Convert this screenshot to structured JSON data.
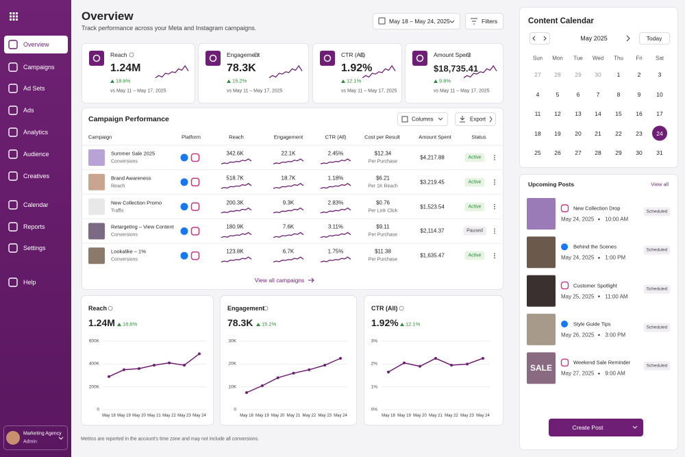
{
  "sidebar": {
    "nav": [
      "Overview",
      "Campaigns",
      "Ad Sets",
      "Ads",
      "Analytics",
      "Audience",
      "Creatives",
      "Calendar",
      "Reports",
      "Settings",
      "Help"
    ],
    "active": 0,
    "profile": {
      "name": "Marketing Agency",
      "role": "Admin"
    }
  },
  "header": {
    "title": "Overview",
    "subtitle": "Track performance across your Meta and Instagram campaigns.",
    "date_range": "May 18 – May 24, 2025",
    "filters": "Filters"
  },
  "kpis": [
    {
      "label": "Reach",
      "value": "1.24M",
      "change": "18.6%",
      "period": "vs May 11 – May 17, 2025"
    },
    {
      "label": "Engagement",
      "value": "78.3K",
      "change": "15.2%",
      "period": "vs May 11 – May 17, 2025"
    },
    {
      "label": "CTR (All)",
      "value": "1.92%",
      "change": "12.1%",
      "period": "vs May 11 – May 17, 2025"
    },
    {
      "label": "Amount Spent",
      "value": "$18,735.41",
      "change": "9.8%",
      "period": "vs May 11 – May 17, 2025"
    }
  ],
  "campaigns": {
    "title": "Campaign Performance",
    "columns_button": "Columns",
    "export_button": "Export",
    "headers": [
      "Campaign",
      "Platform",
      "Reach",
      "Engagement",
      "CTR (All)",
      "Cost per Result",
      "Amount Spent",
      "Status"
    ],
    "rows": [
      {
        "name": "Summer Sale 2025",
        "objective": "Conversions",
        "reach": "342.6K",
        "engagement": "22.1K",
        "ctr": "2.45%",
        "cost": "$12.34",
        "cost_unit": "Per Purchase",
        "spent": "$4,217.88",
        "status": "Active"
      },
      {
        "name": "Brand Awareness",
        "objective": "Reach",
        "reach": "518.7K",
        "engagement": "18.7K",
        "ctr": "1.18%",
        "cost": "$6.21",
        "cost_unit": "Per 1K Reach",
        "spent": "$3,219.45",
        "status": "Active"
      },
      {
        "name": "New Collection Promo",
        "objective": "Traffic",
        "reach": "200.3K",
        "engagement": "9.3K",
        "ctr": "2.83%",
        "cost": "$0.76",
        "cost_unit": "Per Link Click",
        "spent": "$1,523.54",
        "status": "Active"
      },
      {
        "name": "Retargeting – View Content",
        "objective": "Conversions",
        "reach": "180.9K",
        "engagement": "7.6K",
        "ctr": "3.11%",
        "cost": "$9.11",
        "cost_unit": "Per Purchase",
        "spent": "$2,114.37",
        "status": "Paused"
      },
      {
        "name": "Lookalike – 1%",
        "objective": "Conversions",
        "reach": "123.8K",
        "engagement": "6.7K",
        "ctr": "1.75%",
        "cost": "$11.38",
        "cost_unit": "Per Purchase",
        "spent": "$1,635.47",
        "status": "Active"
      }
    ],
    "view_all": "View all campaigns"
  },
  "charts": [
    {
      "type": "line",
      "title": "Reach",
      "value": "1.24M",
      "change": "18.6%",
      "categories": [
        "May 18",
        "May 19",
        "May 20",
        "May 21",
        "May 22",
        "May 23",
        "May 24"
      ],
      "values": [
        290000,
        350000,
        360000,
        390000,
        410000,
        390000,
        490000
      ],
      "ylim": [
        0,
        600000
      ],
      "yticks": [
        0,
        {
          "value": 200000,
          "label": "200K"
        },
        {
          "value": 400000,
          "label": "400K"
        },
        {
          "value": 600000,
          "label": "600K"
        }
      ],
      "color": "#6e1e74",
      "grid": true
    },
    {
      "type": "line",
      "title": "Engagement",
      "value": "78.3K",
      "change": "15.2%",
      "categories": [
        "May 18",
        "May 19",
        "May 20",
        "May 21",
        "May 22",
        "May 23",
        "May 24"
      ],
      "values": [
        7500,
        10500,
        14000,
        16000,
        17500,
        19500,
        22500
      ],
      "ylim": [
        0,
        30000
      ],
      "yticks": [
        0,
        {
          "value": 10000,
          "label": "10K"
        },
        {
          "value": 20000,
          "label": "20K"
        },
        {
          "value": 30000,
          "label": "30K"
        }
      ],
      "color": "#6e1e74",
      "grid": true
    },
    {
      "type": "line",
      "title": "CTR (All)",
      "value": "1.92%",
      "change": "12.1%",
      "categories": [
        "May 18",
        "May 19",
        "May 20",
        "May 21",
        "May 22",
        "May 23",
        "May 24"
      ],
      "values": [
        1.65,
        2.05,
        1.9,
        2.25,
        1.95,
        2.0,
        2.25
      ],
      "ylim": [
        0,
        3
      ],
      "yticks": [
        {
          "value": 0,
          "label": "0%"
        },
        {
          "value": 1,
          "label": "1%"
        },
        {
          "value": 2,
          "label": "2%"
        },
        {
          "value": 3,
          "label": "3%"
        }
      ],
      "color": "#6e1e74",
      "grid": true
    }
  ],
  "footer_note": "Metrics are reported in the account's time zone and may not include all conversions.",
  "calendar": {
    "title": "Content Calendar",
    "month": "May 2025",
    "today": "Today",
    "weekdays": [
      "Sun",
      "Mon",
      "Tue",
      "Wed",
      "Thu",
      "Fri",
      "Sat"
    ],
    "weeks": [
      [
        27,
        28,
        29,
        30,
        1,
        2,
        3
      ],
      [
        4,
        5,
        6,
        7,
        8,
        9,
        10
      ],
      [
        11,
        12,
        13,
        14,
        15,
        16,
        17
      ],
      [
        18,
        19,
        20,
        21,
        22,
        23,
        24
      ],
      [
        25,
        26,
        27,
        28,
        29,
        30,
        31
      ]
    ],
    "selected": 24
  },
  "upcoming": {
    "title": "Upcoming Posts",
    "view_all": "View all",
    "items": [
      {
        "title": "New Collection Drop",
        "date": "May 24, 2025",
        "time": "10:00 AM",
        "status": "Scheduled"
      },
      {
        "title": "Behind the Scenes",
        "date": "May 24, 2025",
        "time": "1:00 PM",
        "status": "Scheduled"
      },
      {
        "title": "Customer Spotlight",
        "date": "May 25, 2025",
        "time": "11:00 AM",
        "status": "Scheduled"
      },
      {
        "title": "Style Guide Tips",
        "date": "May 26, 2025",
        "time": "3:00 PM",
        "status": "Scheduled"
      },
      {
        "title": "Weekend Sale Reminder",
        "date": "May 27, 2025",
        "time": "9:00 AM",
        "status": "Scheduled",
        "image_text": "SALE"
      }
    ],
    "create": "Create Post"
  }
}
